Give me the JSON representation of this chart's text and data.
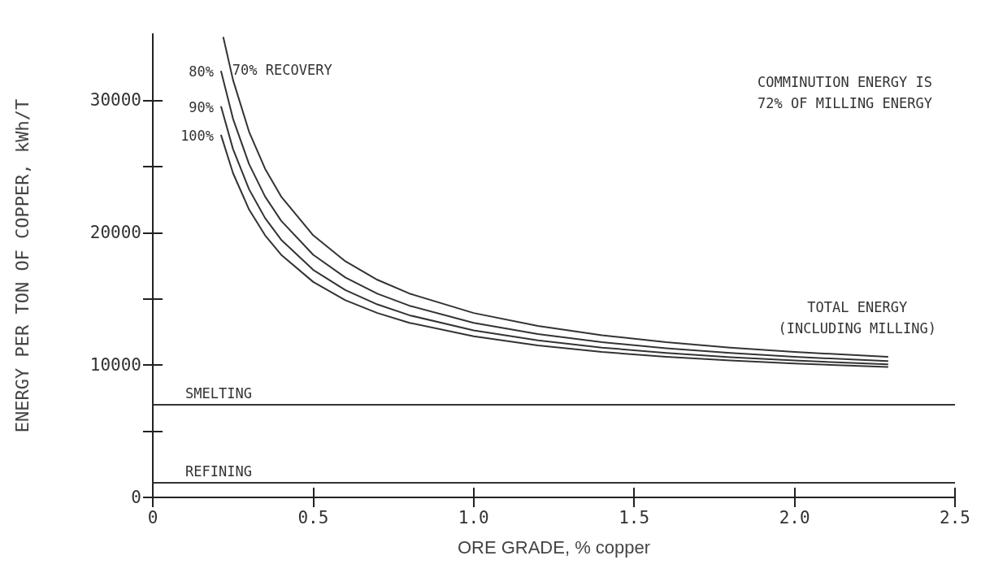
{
  "chart_data": {
    "type": "line",
    "xlabel": "ORE GRADE, % copper",
    "ylabel": "ENERGY PER TON OF COPPER, kWh/T",
    "xlim": [
      0,
      2.5
    ],
    "xticks": [
      0,
      0.5,
      {
        "value": 1,
        "label": "1.0"
      },
      1.5,
      {
        "value": 2,
        "label": "2.0"
      },
      2.5
    ],
    "ylim": [
      0,
      35000
    ],
    "yticks": [
      0,
      {
        "value": 5000,
        "label": null
      },
      10000,
      {
        "value": 15000,
        "label": null
      },
      20000,
      {
        "value": 25000,
        "label": null
      },
      30000
    ],
    "grid": false,
    "legend": false,
    "marker": "none",
    "line_style": "solid",
    "series": [
      {
        "name": "70% RECOVERY",
        "color": "#333333",
        "x": [
          0.22,
          0.25,
          0.3,
          0.35,
          0.4,
          0.5,
          0.6,
          0.7,
          0.8,
          1.0,
          1.2,
          1.4,
          1.6,
          1.8,
          2.0,
          2.29
        ],
        "values": [
          34740,
          31540,
          27630,
          24830,
          22730,
          19800,
          17840,
          16440,
          15400,
          13930,
          12950,
          12250,
          11730,
          11320,
          10990,
          10620
        ]
      },
      {
        "name": "80%",
        "color": "#333333",
        "x": [
          0.213,
          0.25,
          0.3,
          0.35,
          0.4,
          0.5,
          0.6,
          0.7,
          0.8,
          1.0,
          1.2,
          1.4,
          1.6,
          1.8,
          2.0,
          2.29
        ],
        "values": [
          32180,
          28610,
          25180,
          22730,
          20900,
          18330,
          16620,
          15390,
          14480,
          13190,
          12340,
          11730,
          11270,
          10910,
          10620,
          10300
        ]
      },
      {
        "name": "90%",
        "color": "#333333",
        "x": [
          0.213,
          0.25,
          0.3,
          0.35,
          0.4,
          0.5,
          0.6,
          0.7,
          0.8,
          1.0,
          1.2,
          1.4,
          1.6,
          1.8,
          2.0,
          2.29
        ],
        "values": [
          29500,
          26320,
          23280,
          21100,
          19470,
          17190,
          15670,
          14580,
          13760,
          12620,
          11860,
          11320,
          10910,
          10590,
          10340,
          10050
        ]
      },
      {
        "name": "100%",
        "color": "#333333",
        "x": [
          0.213,
          0.25,
          0.3,
          0.35,
          0.4,
          0.5,
          0.6,
          0.7,
          0.8,
          1.0,
          1.2,
          1.4,
          1.6,
          1.8,
          2.0,
          2.29
        ],
        "values": [
          27350,
          24500,
          21750,
          19800,
          18330,
          16280,
          14900,
          13930,
          13190,
          12170,
          11480,
          10990,
          10620,
          10340,
          10110,
          9850
        ]
      }
    ],
    "ref_lines": [
      {
        "axis": "y",
        "value": 7000,
        "label": "SMELTING",
        "color": "#333333"
      },
      {
        "axis": "y",
        "value": 1100,
        "label": "REFINING",
        "color": "#333333"
      }
    ],
    "annotations": [
      "COMMINUTION ENERGY IS\n72% OF MILLING ENERGY",
      "TOTAL ENERGY\n(INCLUDING MILLING)"
    ]
  }
}
